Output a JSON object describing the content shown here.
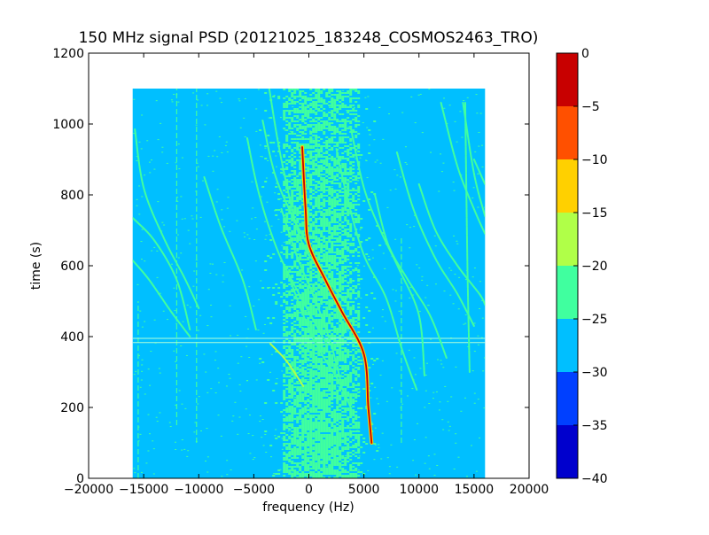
{
  "chart_data": {
    "type": "heatmap",
    "title": "150 MHz signal PSD (20121025_183248_COSMOS2463_TRO)",
    "xlabel": "frequency (Hz)",
    "ylabel": "time (s)",
    "xlim": [
      -20000,
      20000
    ],
    "ylim": [
      0,
      1200
    ],
    "xticks": [
      -20000,
      -15000,
      -10000,
      -5000,
      0,
      5000,
      10000,
      15000,
      20000
    ],
    "xtick_labels": [
      "−20000",
      "−15000",
      "−10000",
      "−5000",
      "0",
      "5000",
      "10000",
      "15000",
      "20000"
    ],
    "yticks": [
      0,
      200,
      400,
      600,
      800,
      1000,
      1200
    ],
    "ytick_labels": [
      "0",
      "200",
      "400",
      "600",
      "800",
      "1000",
      "1200"
    ],
    "data_extent": {
      "x": [
        -16000,
        16000
      ],
      "y": [
        0,
        1100
      ]
    },
    "background_level": -27.5,
    "noise_band": {
      "x": [
        -2600,
        4500
      ],
      "level": -22.5
    },
    "colorbar": {
      "levels": [
        -40,
        -35,
        -30,
        -25,
        -20,
        -15,
        -10,
        -5,
        0
      ],
      "tick_labels": [
        "−40",
        "−35",
        "−30",
        "−25",
        "−20",
        "−15",
        "−10",
        "−5",
        "0"
      ],
      "colors": [
        "#0000cd",
        "#0040ff",
        "#00bfff",
        "#40ff9f",
        "#b0ff48",
        "#ffd000",
        "#ff5000",
        "#c80000"
      ]
    },
    "traces": [
      {
        "x": [
          -16000,
          -14000,
          -12000,
          -10800
        ],
        "y": [
          735,
          670,
          560,
          420
        ],
        "level": -22.5
      },
      {
        "x": [
          -16000,
          -14500,
          -12500,
          -10800
        ],
        "y": [
          615,
          560,
          470,
          400
        ],
        "level": -22.5
      },
      {
        "x": [
          -15800,
          -15000,
          -13200,
          -11200,
          -10000
        ],
        "y": [
          985,
          820,
          680,
          560,
          480
        ],
        "level": -22.5
      },
      {
        "x": [
          -9500,
          -8000,
          -6000,
          -4800
        ],
        "y": [
          850,
          710,
          560,
          420
        ],
        "level": -22.5
      },
      {
        "x": [
          -5600,
          -4500,
          -2800,
          -700,
          1600
        ],
        "y": [
          960,
          800,
          640,
          510,
          380
        ],
        "level": -22.5
      },
      {
        "x": [
          -4200,
          -3000,
          -1000,
          1000,
          2500,
          3200
        ],
        "y": [
          1010,
          850,
          710,
          600,
          500,
          410
        ],
        "level": -22.5
      },
      {
        "x": [
          -3600,
          -2500,
          -800,
          1000,
          3200
        ],
        "y": [
          1100,
          900,
          680,
          590,
          500
        ],
        "level": -22.5
      },
      {
        "x": [
          -2500,
          -1000,
          500,
          2000,
          3000
        ],
        "y": [
          760,
          620,
          510,
          380,
          260
        ],
        "level": -22.5
      },
      {
        "x": [
          -1800,
          -500,
          1000,
          2600,
          3800
        ],
        "y": [
          570,
          460,
          360,
          280,
          200
        ],
        "level": -22.5
      },
      {
        "x": [
          -3500,
          -2000,
          -500
        ],
        "y": [
          380,
          330,
          260
        ],
        "level": -17.5
      },
      {
        "x": [
          -600,
          -300,
          0,
          1500,
          3000,
          5000,
          5400,
          5700
        ],
        "y": [
          935,
          760,
          660,
          560,
          470,
          350,
          200,
          100
        ],
        "level": -2.5
      },
      {
        "x": [
          2500,
          3500,
          5000,
          7000,
          8500,
          9800
        ],
        "y": [
          930,
          790,
          630,
          510,
          360,
          250
        ],
        "level": -22.5
      },
      {
        "x": [
          3800,
          5000,
          6500,
          8200,
          10000,
          10500
        ],
        "y": [
          990,
          820,
          700,
          590,
          460,
          290
        ],
        "level": -22.5
      },
      {
        "x": [
          6000,
          7200,
          9000,
          11000,
          12500
        ],
        "y": [
          800,
          660,
          560,
          460,
          340
        ],
        "level": -22.5
      },
      {
        "x": [
          8000,
          9500,
          11500,
          13500,
          15000
        ],
        "y": [
          920,
          760,
          620,
          520,
          430
        ],
        "level": -22.5
      },
      {
        "x": [
          10000,
          11500,
          13500,
          15500,
          16000
        ],
        "y": [
          830,
          700,
          600,
          520,
          490
        ],
        "level": -22.5
      },
      {
        "x": [
          12000,
          13500,
          15000,
          16000
        ],
        "y": [
          1060,
          880,
          760,
          690
        ],
        "level": -22.5
      },
      {
        "x": [
          14000,
          15000,
          16000
        ],
        "y": [
          1060,
          860,
          740
        ],
        "level": -22.5
      },
      {
        "x": [
          15000,
          16000
        ],
        "y": [
          900,
          830
        ],
        "level": -22.5
      },
      {
        "x": [
          14200,
          14400,
          14600
        ],
        "y": [
          1060,
          600,
          300
        ],
        "level": -22.5
      }
    ],
    "vertical_lines": [
      {
        "x": -12000,
        "y": [
          150,
          1100
        ]
      },
      {
        "x": -10200,
        "y": [
          100,
          1100
        ]
      },
      {
        "x": -15500,
        "y": [
          0,
          500
        ]
      },
      {
        "x": 8400,
        "y": [
          100,
          680
        ]
      }
    ],
    "horizontal_lines": [
      {
        "y": 383,
        "x": [
          -16000,
          16000
        ]
      },
      {
        "y": 395,
        "x": [
          -16000,
          16000
        ]
      }
    ]
  }
}
